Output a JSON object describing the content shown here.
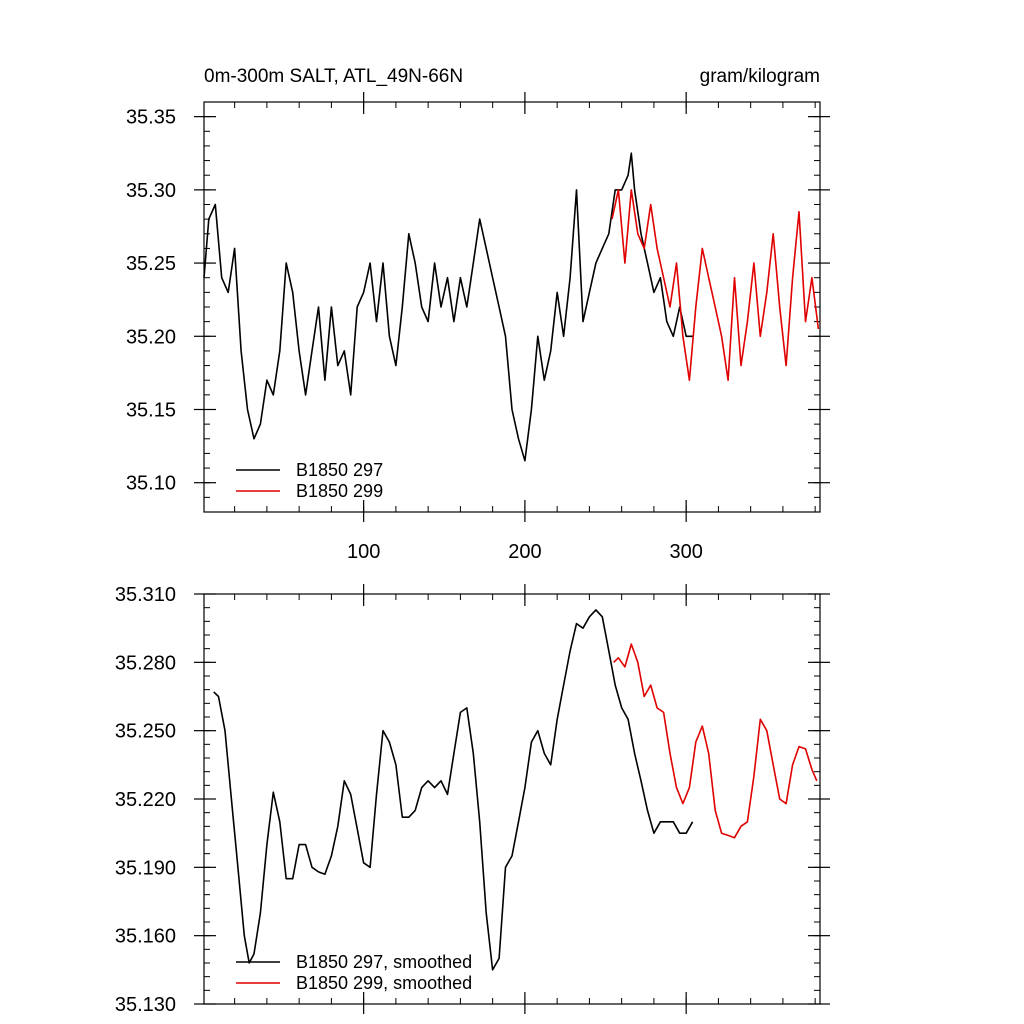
{
  "chart_data": [
    {
      "type": "line",
      "title": "0m-300m SALT, ATL_49N-66N",
      "units": "gram/kilogram",
      "xlim": [
        1,
        383
      ],
      "ylim": [
        35.08,
        35.36
      ],
      "xticks": [
        100,
        200,
        300
      ],
      "yticks": [
        35.1,
        35.15,
        35.2,
        35.25,
        35.3,
        35.35
      ],
      "ytick_labels": [
        "35.10",
        "35.15",
        "35.20",
        "35.25",
        "35.30",
        "35.35"
      ],
      "legend_position": "bottom-left",
      "series": [
        {
          "name": "B1850 297",
          "color": "#000000",
          "x": [
            1,
            4,
            8,
            12,
            16,
            20,
            24,
            28,
            32,
            36,
            40,
            44,
            48,
            52,
            56,
            60,
            64,
            68,
            72,
            76,
            80,
            84,
            88,
            92,
            96,
            100,
            104,
            108,
            112,
            116,
            120,
            124,
            128,
            132,
            136,
            140,
            144,
            148,
            152,
            156,
            160,
            164,
            168,
            172,
            176,
            180,
            184,
            188,
            192,
            196,
            200,
            204,
            208,
            212,
            216,
            220,
            224,
            228,
            232,
            236,
            240,
            244,
            248,
            252,
            256,
            260,
            264,
            266,
            268,
            272,
            276,
            280,
            284,
            288,
            292,
            296,
            300,
            304
          ],
          "values": [
            35.24,
            35.28,
            35.29,
            35.24,
            35.23,
            35.26,
            35.19,
            35.15,
            35.13,
            35.14,
            35.17,
            35.16,
            35.19,
            35.25,
            35.23,
            35.19,
            35.16,
            35.19,
            35.22,
            35.17,
            35.22,
            35.18,
            35.19,
            35.16,
            35.22,
            35.23,
            35.25,
            35.21,
            35.25,
            35.2,
            35.18,
            35.22,
            35.27,
            35.25,
            35.22,
            35.21,
            35.25,
            35.22,
            35.24,
            35.21,
            35.24,
            35.22,
            35.25,
            35.28,
            35.26,
            35.24,
            35.22,
            35.2,
            35.15,
            35.13,
            35.115,
            35.15,
            35.2,
            35.17,
            35.19,
            35.23,
            35.2,
            35.24,
            35.3,
            35.21,
            35.23,
            35.25,
            35.26,
            35.27,
            35.3,
            35.3,
            35.31,
            35.325,
            35.3,
            35.27,
            35.25,
            35.23,
            35.24,
            35.21,
            35.2,
            35.22,
            35.2,
            35.2
          ]
        },
        {
          "name": "B1850 299",
          "color": "#e00000",
          "x": [
            254,
            258,
            262,
            266,
            270,
            274,
            278,
            282,
            286,
            290,
            294,
            298,
            302,
            306,
            310,
            314,
            318,
            322,
            326,
            330,
            334,
            338,
            342,
            346,
            350,
            354,
            358,
            362,
            366,
            370,
            374,
            378,
            382
          ],
          "values": [
            35.28,
            35.3,
            35.25,
            35.3,
            35.27,
            35.26,
            35.29,
            35.26,
            35.24,
            35.22,
            35.25,
            35.2,
            35.17,
            35.22,
            35.26,
            35.24,
            35.22,
            35.2,
            35.17,
            35.24,
            35.18,
            35.21,
            35.25,
            35.2,
            35.23,
            35.27,
            35.22,
            35.18,
            35.24,
            35.285,
            35.21,
            35.24,
            35.205
          ]
        }
      ]
    },
    {
      "type": "line",
      "xlim": [
        1,
        383
      ],
      "ylim": [
        35.13,
        35.31
      ],
      "xticks": [
        100,
        200,
        300
      ],
      "yticks": [
        35.13,
        35.16,
        35.19,
        35.22,
        35.25,
        35.28,
        35.31
      ],
      "ytick_labels": [
        "35.130",
        "35.160",
        "35.190",
        "35.220",
        "35.250",
        "35.280",
        "35.310"
      ],
      "legend_position": "bottom-left",
      "series": [
        {
          "name": "B1850 297, smoothed",
          "color": "#000000",
          "x": [
            7,
            10,
            14,
            18,
            22,
            26,
            29,
            32,
            36,
            40,
            44,
            48,
            52,
            56,
            60,
            64,
            68,
            72,
            76,
            80,
            84,
            88,
            92,
            96,
            100,
            104,
            108,
            112,
            116,
            120,
            124,
            128,
            132,
            136,
            140,
            144,
            148,
            152,
            156,
            160,
            164,
            168,
            172,
            176,
            180,
            184,
            188,
            192,
            196,
            200,
            204,
            208,
            212,
            216,
            220,
            224,
            228,
            232,
            236,
            240,
            244,
            248,
            252,
            256,
            260,
            264,
            268,
            272,
            276,
            280,
            284,
            288,
            292,
            296,
            300,
            304
          ],
          "values": [
            35.267,
            35.265,
            35.25,
            35.22,
            35.19,
            35.16,
            35.148,
            35.152,
            35.17,
            35.2,
            35.223,
            35.21,
            35.185,
            35.185,
            35.2,
            35.2,
            35.19,
            35.188,
            35.187,
            35.195,
            35.208,
            35.228,
            35.222,
            35.207,
            35.192,
            35.19,
            35.222,
            35.25,
            35.245,
            35.235,
            35.212,
            35.212,
            35.215,
            35.225,
            35.228,
            35.225,
            35.228,
            35.222,
            35.24,
            35.258,
            35.26,
            35.24,
            35.21,
            35.17,
            35.145,
            35.15,
            35.19,
            35.195,
            35.21,
            35.225,
            35.245,
            35.25,
            35.24,
            35.235,
            35.255,
            35.27,
            35.285,
            35.297,
            35.295,
            35.3,
            35.303,
            35.3,
            35.285,
            35.27,
            35.26,
            35.255,
            35.24,
            35.228,
            35.215,
            35.205,
            35.21,
            35.21,
            35.21,
            35.205,
            35.205,
            35.21
          ]
        },
        {
          "name": "B1850 299, smoothed",
          "color": "#e00000",
          "x": [
            255,
            258,
            262,
            266,
            270,
            274,
            278,
            282,
            286,
            290,
            294,
            298,
            302,
            306,
            310,
            314,
            318,
            322,
            326,
            330,
            334,
            338,
            342,
            346,
            350,
            354,
            358,
            362,
            366,
            370,
            374,
            378,
            381
          ],
          "values": [
            35.28,
            35.282,
            35.278,
            35.288,
            35.28,
            35.265,
            35.27,
            35.26,
            35.258,
            35.24,
            35.225,
            35.218,
            35.225,
            35.245,
            35.252,
            35.24,
            35.215,
            35.205,
            35.204,
            35.203,
            35.208,
            35.21,
            35.23,
            35.255,
            35.25,
            35.235,
            35.22,
            35.218,
            35.235,
            35.243,
            35.242,
            35.233,
            35.228
          ]
        }
      ]
    }
  ]
}
